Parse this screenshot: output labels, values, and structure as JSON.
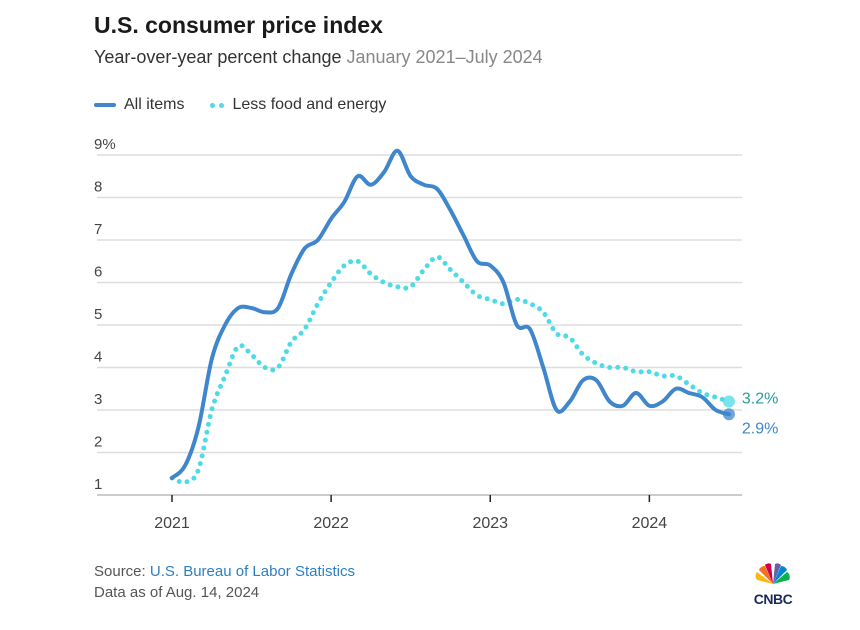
{
  "header": {
    "title": "U.S. consumer price index",
    "subtitle": "Year-over-year percent change",
    "subtitle_range": "January 2021–July 2024"
  },
  "chart_data": {
    "type": "line",
    "x_start": "2021-01",
    "x_end": "2024-07",
    "x_ticks": [
      "2021",
      "2022",
      "2023",
      "2024"
    ],
    "y_ticks": [
      "1",
      "2",
      "3",
      "4",
      "5",
      "6",
      "7",
      "8",
      "9%"
    ],
    "ylim": [
      1,
      9
    ],
    "grid": "horizontal",
    "legend_placement": "top-left",
    "series": [
      {
        "name": "All items",
        "color": "#3f86cc",
        "style": "solid",
        "end_label": "2.9%",
        "values": [
          1.4,
          1.7,
          2.6,
          4.2,
          5.0,
          5.4,
          5.4,
          5.3,
          5.4,
          6.2,
          6.8,
          7.0,
          7.5,
          7.9,
          8.5,
          8.3,
          8.6,
          9.1,
          8.5,
          8.3,
          8.2,
          7.7,
          7.1,
          6.5,
          6.4,
          6.0,
          5.0,
          4.9,
          4.0,
          3.0,
          3.2,
          3.7,
          3.7,
          3.2,
          3.1,
          3.4,
          3.1,
          3.2,
          3.5,
          3.4,
          3.3,
          3.0,
          2.9
        ]
      },
      {
        "name": "Less food and energy",
        "color": "#4ddbe6",
        "style": "dotted",
        "end_label": "3.2%",
        "values": [
          1.4,
          1.3,
          1.6,
          3.0,
          3.8,
          4.5,
          4.3,
          4.0,
          4.0,
          4.6,
          4.9,
          5.5,
          6.0,
          6.4,
          6.5,
          6.2,
          6.0,
          5.9,
          5.9,
          6.3,
          6.6,
          6.3,
          6.0,
          5.7,
          5.6,
          5.5,
          5.6,
          5.5,
          5.3,
          4.8,
          4.7,
          4.3,
          4.1,
          4.0,
          4.0,
          3.9,
          3.9,
          3.8,
          3.8,
          3.6,
          3.4,
          3.3,
          3.2
        ]
      }
    ]
  },
  "footer": {
    "source_label": "Source:",
    "source_link": "U.S. Bureau of Labor Statistics",
    "data_as_of": "Data as of Aug. 14, 2024",
    "logo": "CNBC"
  }
}
